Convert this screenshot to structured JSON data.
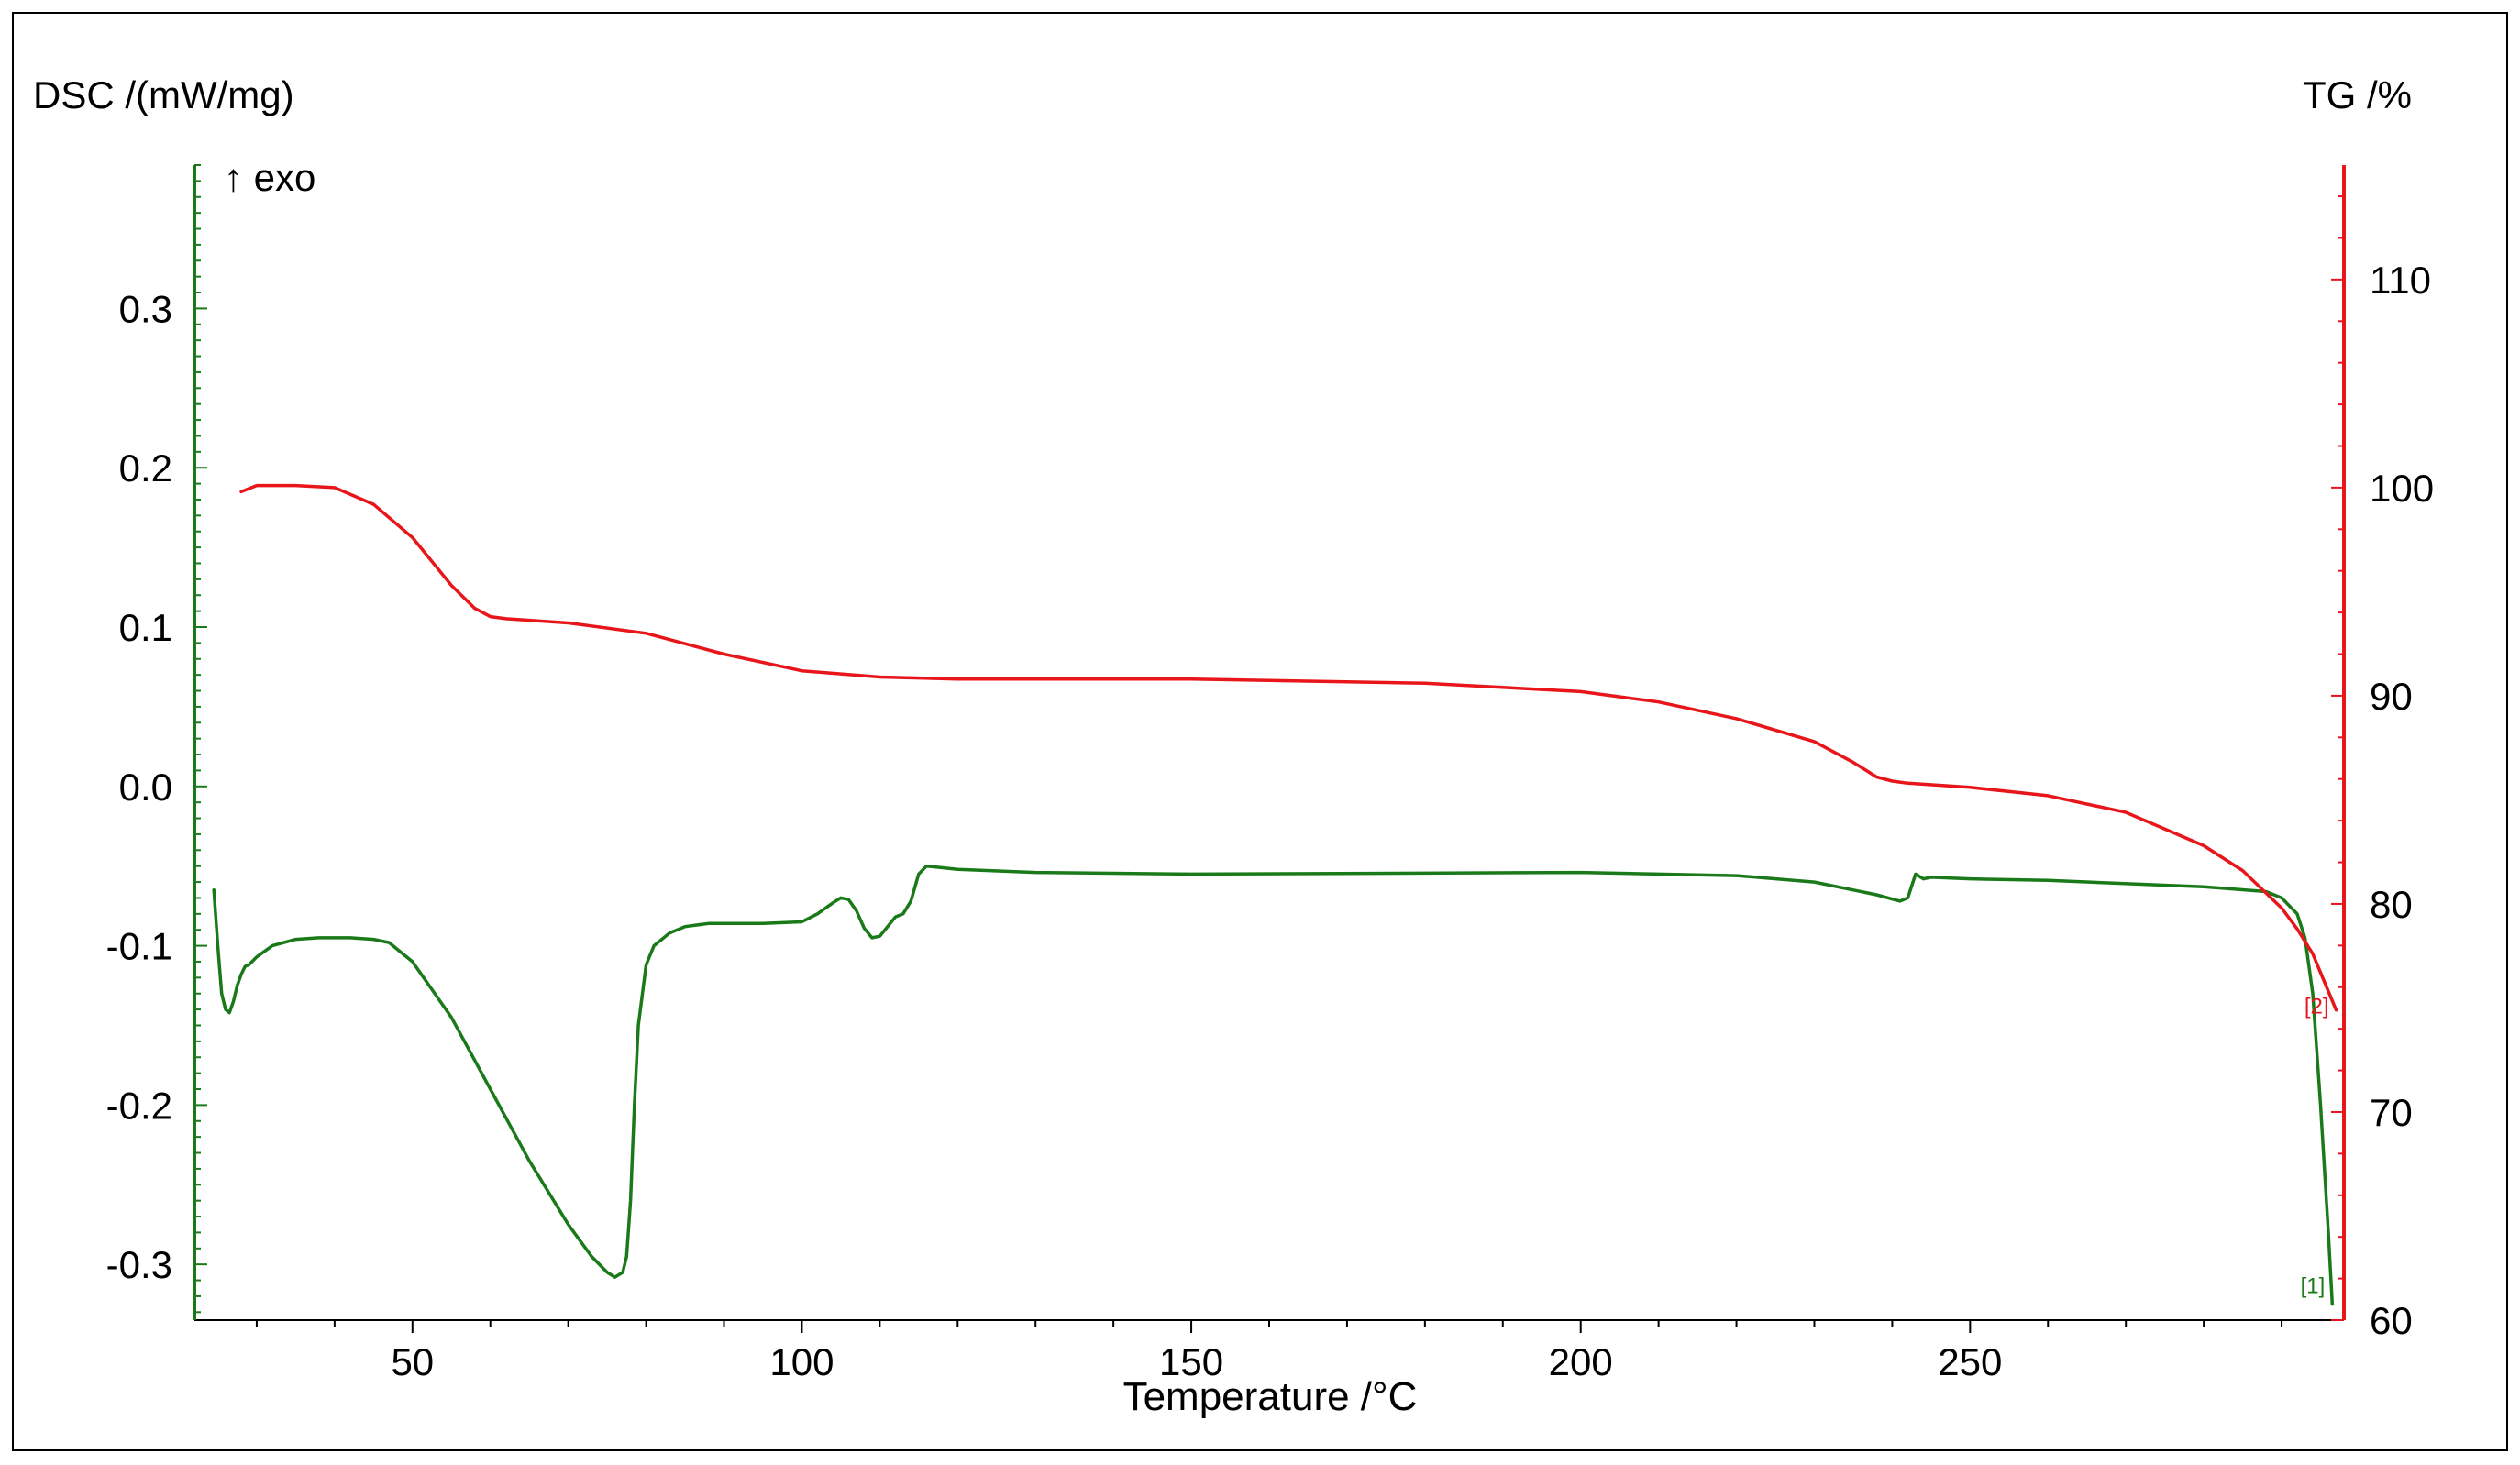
{
  "chart_data": {
    "type": "line",
    "xlabel": "Temperature /°C",
    "xlim": [
      22,
      298
    ],
    "xticks": [
      50,
      100,
      150,
      200,
      250
    ],
    "left_axis": {
      "label": "DSC /(mW/mg)",
      "ylim": [
        -0.335,
        0.39
      ],
      "ticks": [
        -0.3,
        -0.2,
        -0.1,
        0.0,
        0.1,
        0.2,
        0.3
      ],
      "tick_labels": [
        "-0.3",
        "-0.2",
        "-0.1",
        "0.0",
        "0.1",
        "0.2",
        "0.3"
      ],
      "color": "#1a7a1a"
    },
    "right_axis": {
      "label": "TG /%",
      "ylim": [
        60,
        115.5
      ],
      "ticks": [
        60,
        70,
        80,
        90,
        100,
        110
      ],
      "tick_labels": [
        "60",
        "70",
        "80",
        "90",
        "100",
        "110"
      ],
      "color": "#e8161b"
    },
    "annotation": "↑ exo",
    "grid": false,
    "series": [
      {
        "axis": "left",
        "color": "#1a7a1a",
        "end_label": "[1]",
        "x": [
          24.5,
          25,
          25.5,
          26,
          26.5,
          27,
          27.5,
          28,
          28.5,
          29,
          30,
          32,
          35,
          38,
          40,
          42,
          45,
          47,
          50,
          55,
          60,
          65,
          70,
          73,
          75,
          76,
          77,
          77.5,
          78,
          78.5,
          79,
          80,
          81,
          83,
          85,
          88,
          90,
          95,
          100,
          102,
          104,
          105,
          106,
          107,
          108,
          109,
          110,
          111,
          112,
          113,
          114,
          115,
          116,
          120,
          130,
          150,
          200,
          220,
          230,
          238,
          241,
          242,
          243,
          244,
          245,
          250,
          260,
          280,
          288,
          290,
          292,
          293,
          294,
          295,
          296,
          296.5
        ],
        "y": [
          -0.065,
          -0.1,
          -0.13,
          -0.14,
          -0.142,
          -0.135,
          -0.125,
          -0.118,
          -0.113,
          -0.112,
          -0.107,
          -0.1,
          -0.096,
          -0.095,
          -0.095,
          -0.095,
          -0.096,
          -0.098,
          -0.11,
          -0.145,
          -0.19,
          -0.235,
          -0.275,
          -0.295,
          -0.305,
          -0.308,
          -0.305,
          -0.295,
          -0.26,
          -0.2,
          -0.15,
          -0.112,
          -0.1,
          -0.092,
          -0.088,
          -0.086,
          -0.086,
          -0.086,
          -0.085,
          -0.08,
          -0.073,
          -0.07,
          -0.071,
          -0.078,
          -0.089,
          -0.095,
          -0.094,
          -0.088,
          -0.082,
          -0.08,
          -0.072,
          -0.055,
          -0.05,
          -0.052,
          -0.054,
          -0.055,
          -0.054,
          -0.056,
          -0.06,
          -0.068,
          -0.072,
          -0.07,
          -0.055,
          -0.058,
          -0.057,
          -0.058,
          -0.059,
          -0.063,
          -0.066,
          -0.07,
          -0.08,
          -0.095,
          -0.13,
          -0.2,
          -0.28,
          -0.325
        ]
      },
      {
        "axis": "right",
        "color": "#e8161b",
        "end_label": "[2]",
        "x": [
          28,
          30,
          35,
          40,
          45,
          50,
          55,
          58,
          60,
          62,
          70,
          80,
          90,
          100,
          110,
          120,
          150,
          180,
          200,
          210,
          220,
          230,
          235,
          238,
          240,
          242,
          250,
          260,
          270,
          280,
          285,
          290,
          292,
          294,
          296,
          297
        ],
        "y": [
          99.8,
          100.1,
          100.1,
          100,
          99.2,
          97.6,
          95.3,
          94.2,
          93.8,
          93.7,
          93.5,
          93.0,
          92.0,
          91.2,
          90.9,
          90.8,
          90.8,
          90.6,
          90.2,
          89.7,
          88.9,
          87.8,
          86.8,
          86.1,
          85.9,
          85.8,
          85.6,
          85.2,
          84.4,
          82.8,
          81.6,
          79.8,
          78.8,
          77.6,
          75.8,
          74.9
        ]
      }
    ]
  }
}
